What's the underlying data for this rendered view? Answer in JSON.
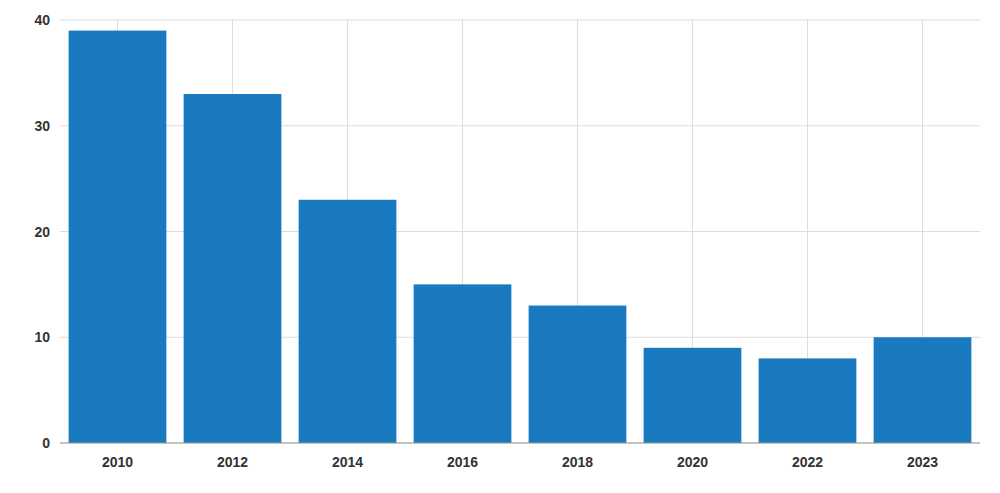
{
  "chart_data": {
    "type": "bar",
    "categories": [
      "2010",
      "2012",
      "2014",
      "2016",
      "2018",
      "2020",
      "2022",
      "2023"
    ],
    "values": [
      39,
      33,
      23,
      15,
      13,
      9,
      8,
      10
    ],
    "color": "#1a7abf",
    "ylim": [
      0,
      40
    ],
    "yticks": [
      0,
      10,
      20,
      30,
      40
    ],
    "grid": true
  }
}
